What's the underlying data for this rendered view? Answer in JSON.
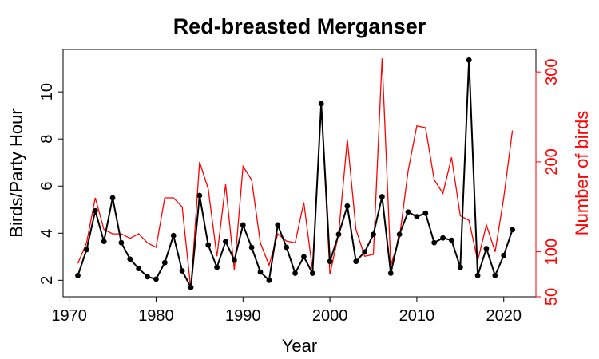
{
  "chart_data": {
    "type": "line",
    "title": "Red-breasted Merganser",
    "xlabel": "Year",
    "ylabel_left": "Birds/Party Hour",
    "ylabel_right": "Number of birds",
    "xlim": [
      1969.3,
      2023.7
    ],
    "ylim_left": [
      1.3,
      11.8
    ],
    "ylim_right": [
      50,
      325
    ],
    "x_ticks": [
      1970,
      1980,
      1990,
      2000,
      2010,
      2020
    ],
    "y_left_ticks": [
      2,
      4,
      6,
      8,
      10
    ],
    "y_right_ticks": [
      50,
      100,
      200,
      300
    ],
    "grid": false,
    "legend": "none",
    "x": [
      1971,
      1972,
      1973,
      1974,
      1975,
      1976,
      1977,
      1978,
      1979,
      1980,
      1981,
      1982,
      1983,
      1984,
      1985,
      1986,
      1987,
      1988,
      1989,
      1990,
      1991,
      1992,
      1993,
      1994,
      1995,
      1996,
      1997,
      1998,
      1999,
      2000,
      2001,
      2002,
      2003,
      2004,
      2005,
      2006,
      2007,
      2008,
      2009,
      2010,
      2011,
      2012,
      2013,
      2014,
      2015,
      2016,
      2017,
      2018,
      2019,
      2020,
      2021
    ],
    "series": [
      {
        "name": "Birds/Party Hour",
        "axis": "left",
        "color": "#000000",
        "values": [
          2.2,
          3.3,
          4.95,
          3.65,
          5.5,
          3.6,
          2.9,
          2.5,
          2.15,
          2.05,
          2.75,
          3.9,
          2.4,
          1.7,
          5.6,
          3.5,
          2.55,
          3.65,
          2.85,
          4.35,
          3.4,
          2.35,
          2.0,
          4.35,
          3.4,
          2.3,
          3.0,
          2.3,
          9.5,
          2.8,
          3.95,
          5.15,
          2.8,
          3.2,
          3.95,
          5.55,
          2.3,
          3.95,
          4.9,
          4.7,
          4.85,
          3.6,
          3.8,
          3.7,
          2.55,
          11.35,
          2.2,
          3.35,
          2.2,
          3.05,
          4.15
        ]
      },
      {
        "name": "Number of birds",
        "axis": "right",
        "color": "#ff0000",
        "values": [
          87,
          110,
          160,
          125,
          120,
          120,
          115,
          120,
          110,
          105,
          160,
          160,
          150,
          58,
          200,
          170,
          95,
          175,
          80,
          195,
          180,
          110,
          85,
          120,
          112,
          110,
          155,
          80,
          265,
          75,
          120,
          225,
          125,
          95,
          97,
          315,
          85,
          115,
          190,
          240,
          238,
          180,
          165,
          205,
          140,
          135,
          90,
          130,
          100,
          160,
          235
        ]
      }
    ]
  }
}
